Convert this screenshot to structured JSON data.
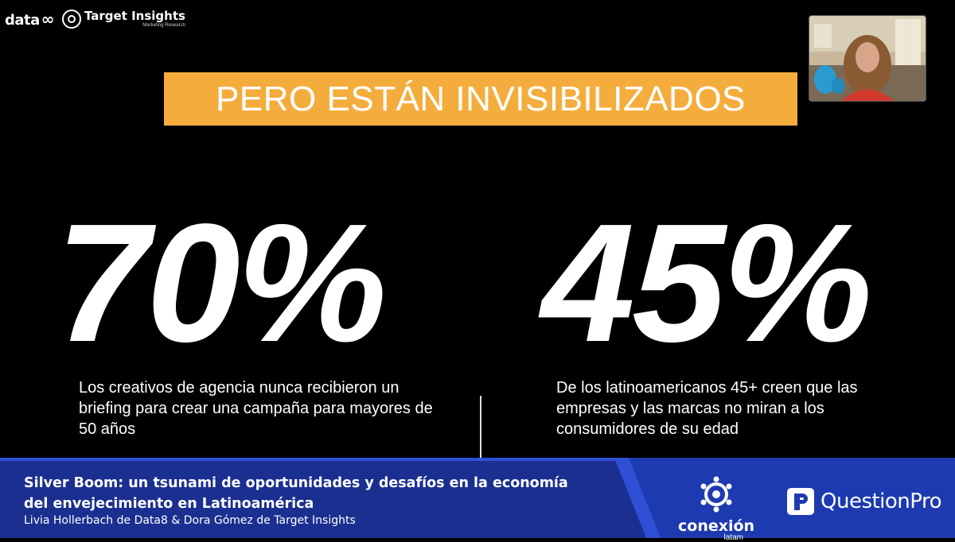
{
  "branding": {
    "data8": "data",
    "data8_symbol": "∞",
    "target_insights": "Target Insights",
    "target_insights_tagline": "Marketing Research"
  },
  "slide": {
    "title": "PERO ESTÁN INVISIBILIZADOS",
    "stat_left": "70%",
    "desc_left": "Los creativos de agencia nunca recibieron un briefing para crear una campaña para mayores de 50 años",
    "stat_right": "45%",
    "desc_right": "De los latinoamericanos 45+ creen que las empresas y las marcas no miran a los consumidores de su edad"
  },
  "lower_third": {
    "title": "Silver Boom: un tsunami de oportunidades y desafíos en la economía del envejecimiento en Latinoamérica",
    "speakers": "Livia Hollerbach de Data8 & Dora Gómez de Target Insights"
  },
  "sponsors": {
    "conexion": "conexión",
    "conexion_sub": "latam",
    "questionpro": "QuestionPro"
  },
  "colors": {
    "banner": "#f4ad3d",
    "lower_third_blue": "#1e3ab0",
    "lower_third_dark": "#1a2f8f"
  }
}
